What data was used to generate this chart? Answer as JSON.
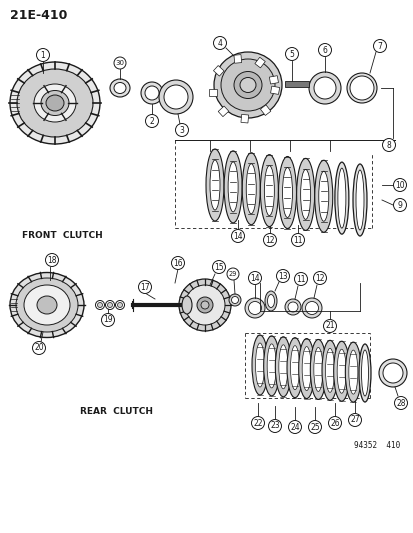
{
  "title_label": "21E-410",
  "front_clutch_label": "FRONT  CLUTCH",
  "rear_clutch_label": "REAR  CLUTCH",
  "diagram_id": "94352  410",
  "bg_color": "#ffffff",
  "line_color": "#1a1a1a",
  "text_color": "#1a1a1a",
  "fig_width": 4.14,
  "fig_height": 5.33,
  "dpi": 100
}
